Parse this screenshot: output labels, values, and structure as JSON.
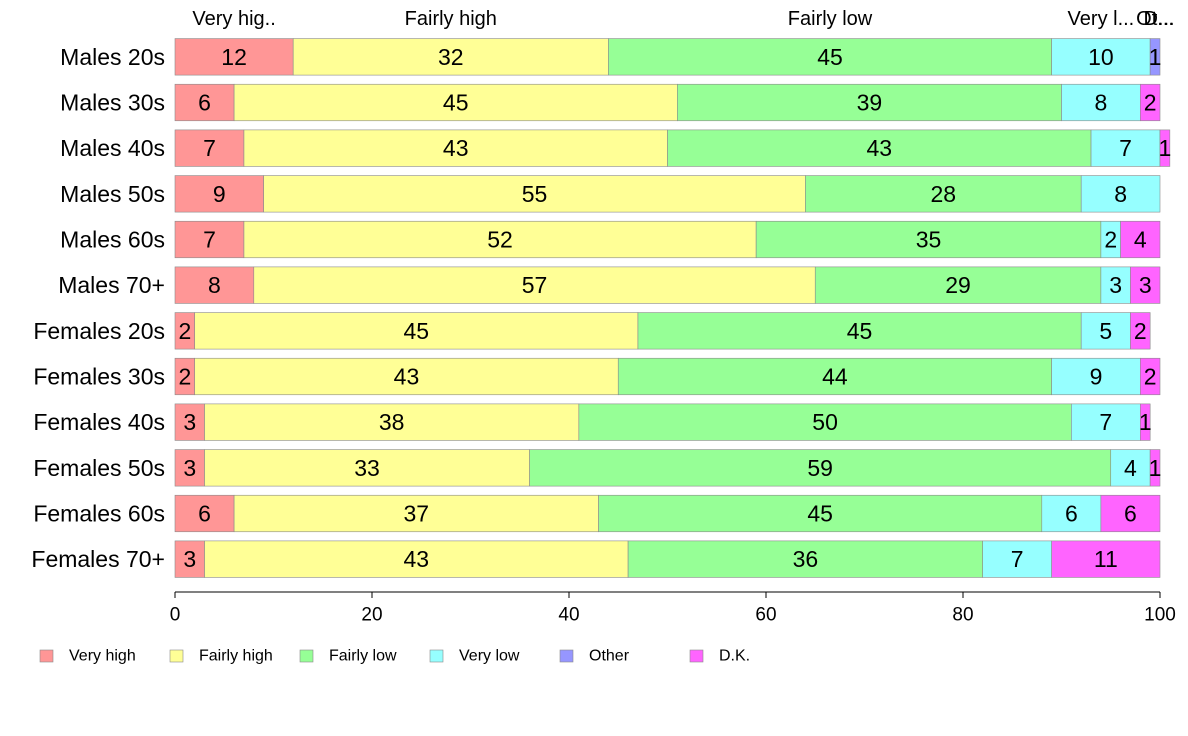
{
  "chart_data": {
    "type": "bar",
    "orientation": "horizontal",
    "stacked": true,
    "categories": [
      "Males 20s",
      "Males 30s",
      "Males 40s",
      "Males 50s",
      "Males 60s",
      "Males 70+",
      "Females 20s",
      "Females 30s",
      "Females 40s",
      "Females 50s",
      "Females 60s",
      "Females 70+"
    ],
    "series": [
      {
        "name": "Very high",
        "color": "#ff9696",
        "values": [
          12,
          6,
          7,
          9,
          7,
          8,
          2,
          2,
          3,
          3,
          6,
          3
        ]
      },
      {
        "name": "Fairly high",
        "color": "#ffff96",
        "values": [
          32,
          45,
          43,
          55,
          52,
          57,
          45,
          43,
          38,
          33,
          37,
          43
        ]
      },
      {
        "name": "Fairly low",
        "color": "#96ff96",
        "values": [
          45,
          39,
          43,
          28,
          35,
          29,
          45,
          44,
          50,
          59,
          45,
          36
        ]
      },
      {
        "name": "Very low",
        "color": "#96ffff",
        "values": [
          10,
          8,
          7,
          8,
          2,
          3,
          5,
          9,
          7,
          4,
          6,
          7
        ]
      },
      {
        "name": "Other",
        "color": "#9696ff",
        "values": [
          1,
          0,
          0,
          0,
          0,
          0,
          0,
          0,
          0,
          0,
          0,
          0
        ]
      },
      {
        "name": "D.K.",
        "color": "#ff64ff",
        "values": [
          0,
          2,
          1,
          0,
          4,
          3,
          2,
          2,
          1,
          1,
          6,
          11
        ]
      }
    ],
    "top_labels": [
      "Very hig..",
      "Fairly high",
      "Fairly low",
      "Very l...",
      "Ot...",
      "D..."
    ],
    "xlim": [
      0,
      100
    ],
    "xticks": [
      0,
      20,
      40,
      60,
      80,
      100
    ],
    "legend_position": "bottom",
    "grid": false,
    "title": "",
    "xlabel": "",
    "ylabel": ""
  }
}
